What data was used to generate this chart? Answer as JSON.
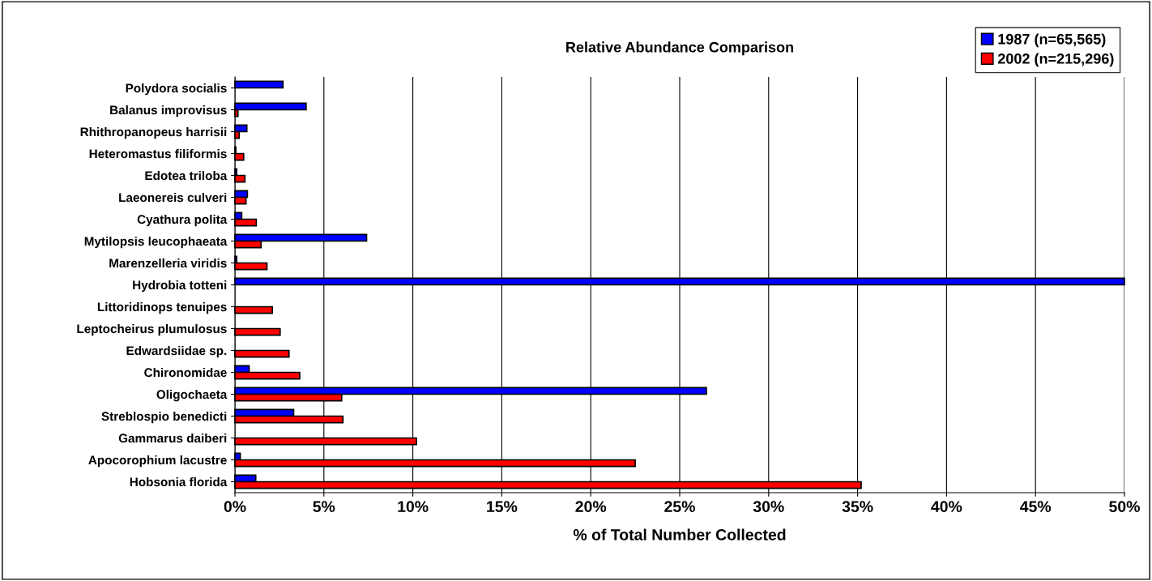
{
  "chart_data": {
    "type": "bar",
    "orientation": "horizontal",
    "title": "Relative Abundance Comparison",
    "xlabel": "% of Total Number Collected",
    "categories": [
      "Polydora socialis",
      "Balanus improvisus",
      "Rhithropanopeus harrisii",
      "Heteromastus filiformis",
      "Edotea triloba",
      "Laeonereis culveri",
      "Cyathura polita",
      "Mytilopsis leucophaeata",
      "Marenzelleria viridis",
      "Hydrobia totteni",
      "Littoridinops tenuipes",
      "Leptocheirus plumulosus",
      "Edwardsiidae sp.",
      "Chironomidae",
      "Oligochaeta",
      "Streblospio benedicti",
      "Gammarus daiberi",
      "Apocorophium lacustre",
      "Hobsonia florida"
    ],
    "series": [
      {
        "name": "1987 (n=65,565)",
        "color": "#0000ff",
        "values": [
          2.7,
          4.0,
          0.67,
          0.05,
          0.1,
          0.7,
          0.38,
          7.4,
          0.1,
          50,
          null,
          null,
          null,
          0.8,
          26.5,
          3.3,
          null,
          0.3,
          1.17
        ]
      },
      {
        "name": "2002 (n=215,296)",
        "color": "#ff0000",
        "values": [
          null,
          0.17,
          0.24,
          0.49,
          0.56,
          0.62,
          1.2,
          1.47,
          1.8,
          null,
          2.1,
          2.54,
          3.04,
          3.64,
          6.0,
          6.07,
          10.2,
          22.5,
          35.2
        ]
      }
    ],
    "xlim": [
      0,
      50
    ],
    "xticks": [
      {
        "value": 0,
        "label": "0%"
      },
      {
        "value": 5,
        "label": "5%"
      },
      {
        "value": 10,
        "label": "10%"
      },
      {
        "value": 15,
        "label": "15%"
      },
      {
        "value": 20,
        "label": "20%"
      },
      {
        "value": 25,
        "label": "25%"
      },
      {
        "value": 30,
        "label": "30%"
      },
      {
        "value": 35,
        "label": "35%"
      },
      {
        "value": 40,
        "label": "40%"
      },
      {
        "value": 45,
        "label": "45%"
      },
      {
        "value": 50,
        "label": "50%"
      }
    ],
    "grid": "x",
    "legend": "top right"
  }
}
